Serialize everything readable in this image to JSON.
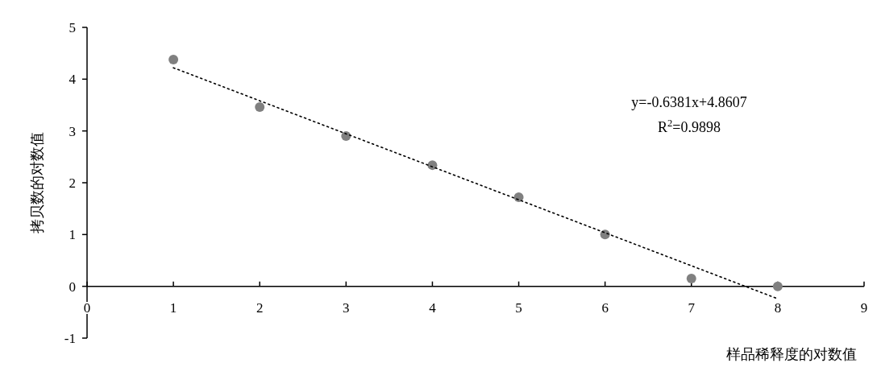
{
  "chart_data": {
    "type": "scatter",
    "xlabel": "样品稀释度的对数值",
    "ylabel": "拷贝数的对数值",
    "x": [
      1,
      2,
      3,
      4,
      5,
      6,
      7,
      8
    ],
    "series": [
      {
        "color": "#808080",
        "marker": "circle",
        "values": [
          4.38,
          3.46,
          2.9,
          2.34,
          1.72,
          1.0,
          0.15,
          0.0
        ]
      },
      {
        "type": "line",
        "color": "#000000",
        "x": [
          1,
          8
        ],
        "values": [
          4.22,
          -0.24
        ],
        "line_style": "dotted"
      }
    ],
    "xlim": [
      0,
      9
    ],
    "xticks": [
      0,
      1,
      2,
      3,
      4,
      5,
      6,
      7,
      8,
      9
    ],
    "ylim": [
      -1,
      5
    ],
    "yticks": [
      -1,
      0,
      1,
      2,
      3,
      4,
      5
    ],
    "annotations": [
      "y=-0.6381x+4.8607",
      "R$^{2}$=0.9898"
    ]
  }
}
